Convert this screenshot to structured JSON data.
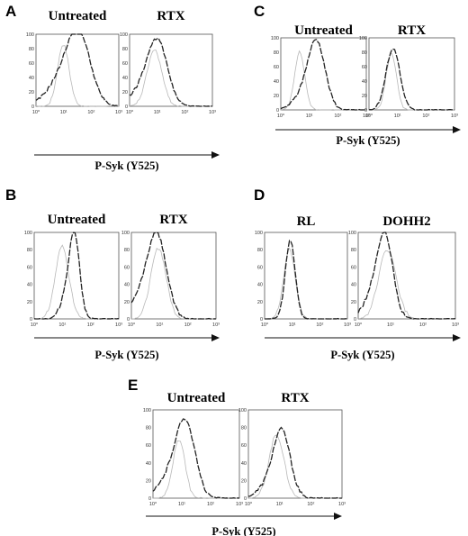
{
  "figure": {
    "panels": [
      {
        "letter": "A",
        "x_axis_label": "P-Syk (Y525)",
        "plots": [
          {
            "title": "Untreated",
            "y_ticks": [
              "100",
              "80",
              "60",
              "40",
              "20",
              "0"
            ],
            "x_ticks": [
              "10⁰",
              "10¹",
              "10²",
              "10³"
            ],
            "control": {
              "peak_x": 0.33,
              "width": 0.07,
              "height": 0.86,
              "shoulder": 0.0
            },
            "treated": {
              "peak_x": 0.52,
              "width": 0.14,
              "height": 0.94,
              "shoulder": 0.35
            }
          },
          {
            "title": "RTX",
            "y_ticks": [
              "100",
              "80",
              "60",
              "40",
              "20",
              "0"
            ],
            "x_ticks": [
              "10⁰",
              "10¹",
              "10²",
              "10³"
            ],
            "control": {
              "peak_x": 0.3,
              "width": 0.09,
              "height": 0.78,
              "shoulder": 0.0
            },
            "treated": {
              "peak_x": 0.34,
              "width": 0.12,
              "height": 0.85,
              "shoulder": 0.25
            }
          }
        ]
      },
      {
        "letter": "C",
        "x_axis_label": "P-Syk (Y525)",
        "plots": [
          {
            "title": "Untreated",
            "y_ticks": [
              "100",
              "80",
              "60",
              "40",
              "20",
              "0"
            ],
            "x_ticks": [
              "10⁰",
              "10¹",
              "10²",
              "10³"
            ],
            "control": {
              "peak_x": 0.22,
              "width": 0.06,
              "height": 0.8,
              "shoulder": 0.0
            },
            "treated": {
              "peak_x": 0.42,
              "width": 0.1,
              "height": 0.9,
              "shoulder": 0.2
            }
          },
          {
            "title": "RTX",
            "y_ticks": [
              "100",
              "80",
              "60",
              "40",
              "20",
              "0"
            ],
            "x_ticks": [
              "10⁰",
              "10¹",
              "10²",
              "10³"
            ],
            "control": {
              "peak_x": 0.26,
              "width": 0.06,
              "height": 0.78,
              "shoulder": 0.0
            },
            "treated": {
              "peak_x": 0.28,
              "width": 0.08,
              "height": 0.86,
              "shoulder": 0.0
            }
          }
        ]
      },
      {
        "letter": "B",
        "x_axis_label": "P-Syk (Y525)",
        "plots": [
          {
            "title": "Untreated",
            "y_ticks": [
              "100",
              "80",
              "60",
              "40",
              "20",
              "0"
            ],
            "x_ticks": [
              "10⁰",
              "10¹",
              "10²",
              "10³"
            ],
            "control": {
              "peak_x": 0.33,
              "width": 0.08,
              "height": 0.84,
              "shoulder": 0.0
            },
            "treated": {
              "peak_x": 0.48,
              "width": 0.06,
              "height": 0.9,
              "shoulder": 0.3
            }
          },
          {
            "title": "RTX",
            "y_ticks": [
              "100",
              "80",
              "60",
              "40",
              "20",
              "0"
            ],
            "x_ticks": [
              "10⁰",
              "10¹",
              "10²",
              "10³"
            ],
            "control": {
              "peak_x": 0.32,
              "width": 0.09,
              "height": 0.82,
              "shoulder": 0.0
            },
            "treated": {
              "peak_x": 0.31,
              "width": 0.11,
              "height": 0.88,
              "shoulder": 0.3
            }
          }
        ]
      },
      {
        "letter": "D",
        "x_axis_label": "P-Syk (Y525)",
        "plots": [
          {
            "title": "RL",
            "y_ticks": [
              "100",
              "80",
              "60",
              "40",
              "20",
              "0"
            ],
            "x_ticks": [
              "10⁰",
              "10¹",
              "10²",
              "10³"
            ],
            "control": {
              "peak_x": 0.3,
              "width": 0.07,
              "height": 0.8,
              "shoulder": 0.0
            },
            "treated": {
              "peak_x": 0.31,
              "width": 0.06,
              "height": 0.9,
              "shoulder": 0.0
            }
          },
          {
            "title": "DOHH2",
            "y_ticks": [
              "100",
              "80",
              "60",
              "40",
              "20",
              "0"
            ],
            "x_ticks": [
              "10⁰",
              "10¹",
              "10²",
              "10³"
            ],
            "control": {
              "peak_x": 0.3,
              "width": 0.09,
              "height": 0.8,
              "shoulder": 0.0
            },
            "treated": {
              "peak_x": 0.28,
              "width": 0.08,
              "height": 0.88,
              "shoulder": 0.3
            }
          }
        ]
      },
      {
        "letter": "E",
        "x_axis_label": "P-Syk (Y525)",
        "plots": [
          {
            "title": "Untreated",
            "y_ticks": [
              "100",
              "80",
              "60",
              "40",
              "20",
              "0"
            ],
            "x_ticks": [
              "10⁰",
              "10¹",
              "10²",
              "10³"
            ],
            "control": {
              "peak_x": 0.3,
              "width": 0.07,
              "height": 0.66,
              "shoulder": 0.0
            },
            "treated": {
              "peak_x": 0.38,
              "width": 0.11,
              "height": 0.8,
              "shoulder": 0.3
            }
          },
          {
            "title": "RTX",
            "y_ticks": [
              "100",
              "80",
              "60",
              "40",
              "20",
              "0"
            ],
            "x_ticks": [
              "10⁰",
              "10¹",
              "10²",
              "10³"
            ],
            "control": {
              "peak_x": 0.3,
              "width": 0.08,
              "height": 0.72,
              "shoulder": 0.0
            },
            "treated": {
              "peak_x": 0.36,
              "width": 0.09,
              "height": 0.72,
              "shoulder": 0.2
            }
          }
        ]
      }
    ]
  }
}
